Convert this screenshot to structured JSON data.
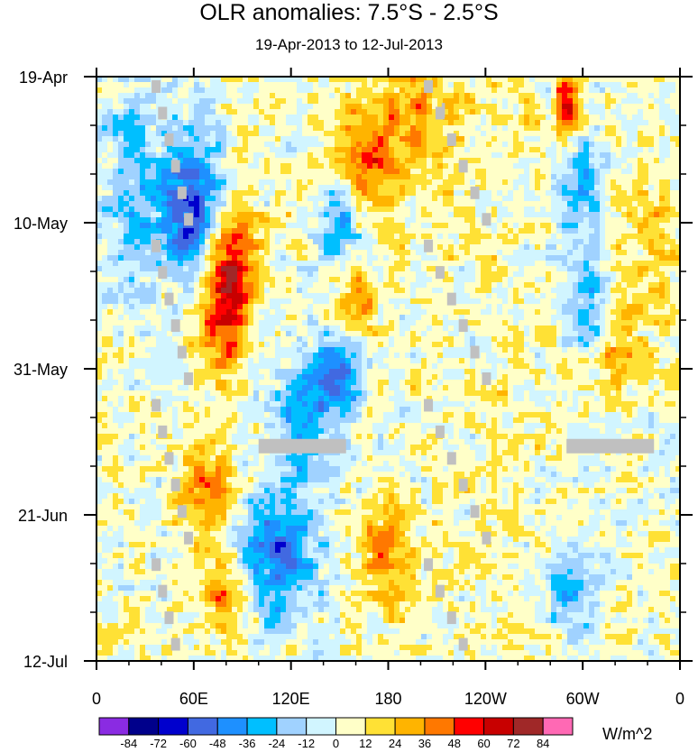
{
  "chart_data": {
    "type": "heatmap",
    "title": "OLR anomalies: 7.5°S - 2.5°S",
    "subtitle": "19-Apr-2013 to 12-Jul-2013",
    "x_ticks": [
      "0",
      "60E",
      "120E",
      "180",
      "120W",
      "60W",
      "0"
    ],
    "x_tick_values": [
      0,
      60,
      120,
      180,
      240,
      300,
      360
    ],
    "xlim": [
      0,
      360
    ],
    "y_ticks": [
      "19-Apr",
      "10-May",
      "31-May",
      "21-Jun",
      "12-Jul"
    ],
    "y_tick_values": [
      "2013-04-19",
      "2013-05-10",
      "2013-05-31",
      "2013-06-21",
      "2013-07-12"
    ],
    "ylim": [
      "2013-04-19",
      "2013-07-12"
    ],
    "y_direction": "time increases downward",
    "colorbar": {
      "levels": [
        -84,
        -72,
        -60,
        -48,
        -36,
        -24,
        -12,
        0,
        12,
        24,
        36,
        48,
        60,
        72,
        84
      ],
      "colors": [
        "#8a2be2",
        "#00008b",
        "#0000cd",
        "#4169e1",
        "#1e90ff",
        "#00bfff",
        "#a0d2ff",
        "#d1f5ff",
        "#ffffc8",
        "#ffe135",
        "#ffb400",
        "#ff7800",
        "#ff0000",
        "#c80000",
        "#a02828",
        "#ff69b4"
      ],
      "units": "W/m^2",
      "placement": "bottom"
    },
    "missing_color": "#c0c0c0",
    "grid": false
  }
}
